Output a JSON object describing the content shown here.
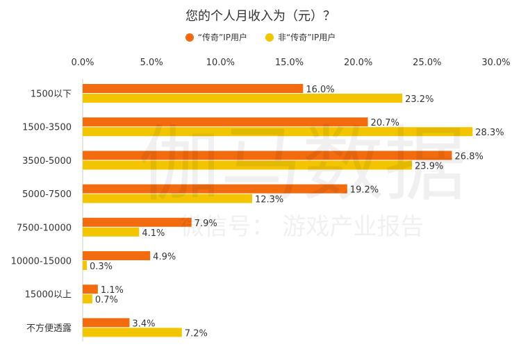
{
  "chart_data": {
    "type": "bar",
    "orientation": "horizontal",
    "title": "您的个人月收入为（元）？",
    "categories": [
      "1500以下",
      "1500-3500",
      "3500-5000",
      "5000-7500",
      "7500-10000",
      "10000-15000",
      "15000以上",
      "不方便透露"
    ],
    "series": [
      {
        "name": "“传奇”IP用户",
        "color": "#F26B0F",
        "values": [
          16.0,
          20.7,
          26.8,
          19.2,
          7.9,
          4.9,
          1.1,
          3.4
        ]
      },
      {
        "name": "非“传奇”IP用户",
        "color": "#F2C500",
        "values": [
          23.2,
          28.3,
          23.9,
          12.3,
          4.1,
          0.3,
          0.7,
          7.2
        ]
      }
    ],
    "xlim": [
      0,
      30
    ],
    "ticks": [
      "0.0%",
      "5.0%",
      "10.0%",
      "15.0%",
      "20.0%",
      "25.0%",
      "30.0%"
    ],
    "value_suffix": "%",
    "legend_position": "top-center",
    "grid": false
  },
  "watermark": {
    "line1": "伽马数据",
    "line2": "微信号：  游戏产业报告"
  }
}
